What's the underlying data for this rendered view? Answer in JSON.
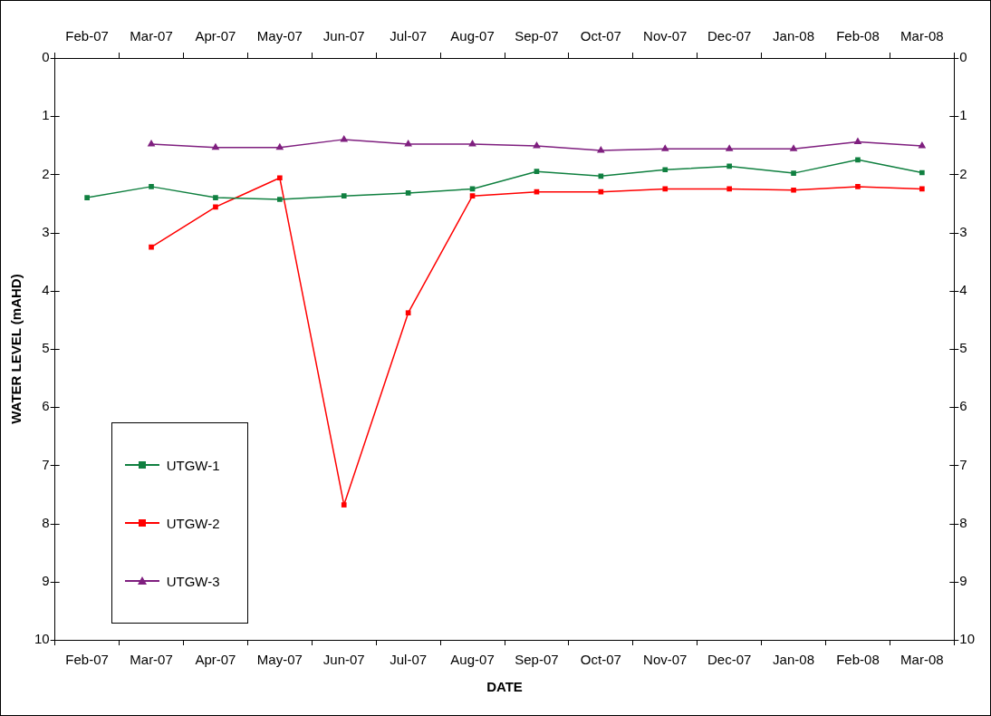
{
  "chart_data": {
    "type": "line",
    "xlabel": "DATE",
    "ylabel": "WATER LEVEL (mAHD)",
    "categories": [
      "Feb-07",
      "Mar-07",
      "Apr-07",
      "May-07",
      "Jun-07",
      "Jul-07",
      "Aug-07",
      "Sep-07",
      "Oct-07",
      "Nov-07",
      "Dec-07",
      "Jan-08",
      "Feb-08",
      "Mar-08"
    ],
    "series": [
      {
        "name": "UTGW-1",
        "color": "#108040",
        "marker": "square",
        "values": [
          2.4,
          2.21,
          2.4,
          2.43,
          2.37,
          2.32,
          2.25,
          1.95,
          2.03,
          1.92,
          1.86,
          1.98,
          1.75,
          1.97
        ]
      },
      {
        "name": "UTGW-2",
        "color": "#ff0000",
        "marker": "square",
        "values": [
          null,
          3.25,
          2.56,
          2.06,
          7.68,
          4.38,
          2.37,
          2.3,
          2.3,
          2.25,
          2.25,
          2.27,
          2.21,
          2.25
        ]
      },
      {
        "name": "UTGW-3",
        "color": "#7f1f7f",
        "marker": "triangle",
        "values": [
          null,
          1.48,
          1.54,
          1.54,
          1.4,
          1.48,
          1.48,
          1.51,
          1.59,
          1.56,
          1.56,
          1.56,
          1.44,
          1.51
        ]
      }
    ],
    "ylim": [
      10,
      0
    ],
    "yticks": [
      0,
      1,
      2,
      3,
      4,
      5,
      6,
      7,
      8,
      9,
      10
    ],
    "y2lim": [
      10,
      0
    ],
    "y2ticks": [
      0,
      1,
      2,
      3,
      4,
      5,
      6,
      7,
      8,
      9,
      10
    ],
    "grid": false,
    "legend": "bottom left",
    "line_style": "solid"
  }
}
